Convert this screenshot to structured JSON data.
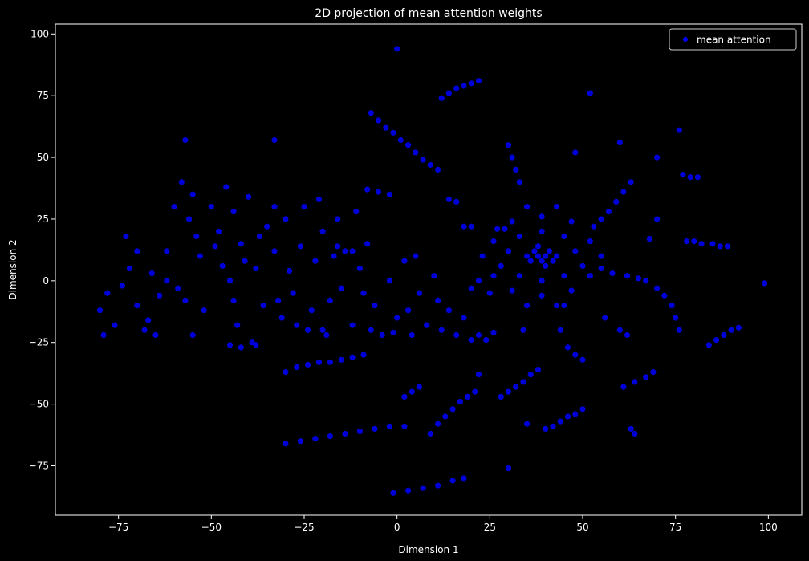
{
  "chart_data": {
    "type": "scatter",
    "title": "2D projection of mean attention weights",
    "xlabel": "Dimension 1",
    "ylabel": "Dimension 2",
    "xlim": [
      -92,
      109
    ],
    "ylim": [
      -95,
      104
    ],
    "xticks": [
      -75,
      -50,
      -25,
      0,
      25,
      50,
      75,
      100
    ],
    "yticks": [
      -75,
      -50,
      -25,
      0,
      25,
      50,
      75,
      100
    ],
    "xtick_labels": [
      "−75",
      "−50",
      "−25",
      "0",
      "25",
      "50",
      "75",
      "100"
    ],
    "ytick_labels": [
      "−75",
      "−50",
      "−25",
      "0",
      "25",
      "50",
      "75",
      "100"
    ],
    "grid": false,
    "legend_position": "top-right",
    "colors": {
      "background": "#000000",
      "points": "#0000ff",
      "text": "#ffffff"
    },
    "series": [
      {
        "name": "mean attention",
        "color": "#0000ff",
        "points": [
          [
            -80,
            -12
          ],
          [
            -78,
            -5
          ],
          [
            -76,
            -18
          ],
          [
            -74,
            -2
          ],
          [
            -72,
            5
          ],
          [
            -70,
            -10
          ],
          [
            -68,
            -20
          ],
          [
            -66,
            3
          ],
          [
            -64,
            -6
          ],
          [
            -62,
            12
          ],
          [
            -60,
            30
          ],
          [
            -58,
            40
          ],
          [
            -56,
            25
          ],
          [
            -55,
            35
          ],
          [
            -53,
            10
          ],
          [
            -50,
            30
          ],
          [
            -48,
            20
          ],
          [
            -46,
            38
          ],
          [
            -45,
            0
          ],
          [
            -44,
            28
          ],
          [
            -42,
            15
          ],
          [
            -40,
            34
          ],
          [
            -38,
            5
          ],
          [
            -36,
            -10
          ],
          [
            -35,
            22
          ],
          [
            -33,
            12
          ],
          [
            -31,
            -15
          ],
          [
            -30,
            25
          ],
          [
            -28,
            -5
          ],
          [
            -26,
            14
          ],
          [
            -25,
            30
          ],
          [
            -24,
            -20
          ],
          [
            -22,
            8
          ],
          [
            -20,
            20
          ],
          [
            -18,
            -8
          ],
          [
            -16,
            25
          ],
          [
            -14,
            12
          ],
          [
            -12,
            -18
          ],
          [
            -10,
            5
          ],
          [
            -8,
            15
          ],
          [
            -6,
            -10
          ],
          [
            -4,
            -22
          ],
          [
            -2,
            0
          ],
          [
            0,
            -15
          ],
          [
            2,
            8
          ],
          [
            4,
            -22
          ],
          [
            6,
            -5
          ],
          [
            8,
            -18
          ],
          [
            10,
            2
          ],
          [
            12,
            -20
          ],
          [
            14,
            -12
          ],
          [
            16,
            -22
          ],
          [
            18,
            -15
          ],
          [
            20,
            -24
          ],
          [
            22,
            -22
          ],
          [
            24,
            -24
          ],
          [
            26,
            -21
          ],
          [
            -73,
            18
          ],
          [
            -67,
            -16
          ],
          [
            -59,
            -3
          ],
          [
            -52,
            -12
          ],
          [
            -47,
            6
          ],
          [
            -43,
            -18
          ],
          [
            -39,
            -25
          ],
          [
            -33,
            30
          ],
          [
            -27,
            -18
          ],
          [
            -21,
            33
          ],
          [
            -15,
            -3
          ],
          [
            -11,
            28
          ],
          [
            -62,
            0
          ],
          [
            -57,
            -8
          ],
          [
            -49,
            14
          ],
          [
            -44,
            -8
          ],
          [
            -37,
            18
          ],
          [
            -29,
            4
          ],
          [
            -23,
            -12
          ],
          [
            -17,
            10
          ],
          [
            -9,
            -5
          ],
          [
            -1,
            -21
          ],
          [
            5,
            10
          ],
          [
            -65,
            -22
          ],
          [
            -70,
            12
          ],
          [
            -79,
            -22
          ],
          [
            -54,
            18
          ],
          [
            -41,
            8
          ],
          [
            -32,
            -8
          ],
          [
            -19,
            -22
          ],
          [
            -7,
            -20
          ],
          [
            3,
            -12
          ],
          [
            11,
            -8
          ],
          [
            -5,
            65
          ],
          [
            -3,
            62
          ],
          [
            -1,
            60
          ],
          [
            1,
            57
          ],
          [
            3,
            55
          ],
          [
            5,
            52
          ],
          [
            7,
            49
          ],
          [
            9,
            47
          ],
          [
            11,
            45
          ],
          [
            -7,
            68
          ],
          [
            12,
            74
          ],
          [
            14,
            76
          ],
          [
            16,
            78
          ],
          [
            18,
            79
          ],
          [
            20,
            80
          ],
          [
            22,
            81
          ],
          [
            -30,
            -37
          ],
          [
            -27,
            -35
          ],
          [
            -24,
            -34
          ],
          [
            -21,
            -33
          ],
          [
            -18,
            -33
          ],
          [
            -15,
            -32
          ],
          [
            -12,
            -31
          ],
          [
            -9,
            -30
          ],
          [
            -30,
            -66
          ],
          [
            -26,
            -65
          ],
          [
            -22,
            -64
          ],
          [
            -18,
            -63
          ],
          [
            -14,
            -62
          ],
          [
            -10,
            -61
          ],
          [
            -6,
            -60
          ],
          [
            -2,
            -59
          ],
          [
            2,
            -59
          ],
          [
            -1,
            -86
          ],
          [
            3,
            -85
          ],
          [
            7,
            -84
          ],
          [
            11,
            -83
          ],
          [
            15,
            -81
          ],
          [
            18,
            -80
          ],
          [
            9,
            -62
          ],
          [
            11,
            -58
          ],
          [
            13,
            -55
          ],
          [
            15,
            -52
          ],
          [
            17,
            -49
          ],
          [
            19,
            -47
          ],
          [
            21,
            -45
          ],
          [
            28,
            -47
          ],
          [
            30,
            -45
          ],
          [
            32,
            -43
          ],
          [
            34,
            -41
          ],
          [
            36,
            -38
          ],
          [
            38,
            -36
          ],
          [
            40,
            -60
          ],
          [
            42,
            -59
          ],
          [
            44,
            -57
          ],
          [
            46,
            -55
          ],
          [
            48,
            -54
          ],
          [
            50,
            -52
          ],
          [
            30,
            55
          ],
          [
            31,
            50
          ],
          [
            32,
            45
          ],
          [
            33,
            40
          ],
          [
            30,
            -76
          ],
          [
            64,
            -62
          ],
          [
            63,
            -60
          ],
          [
            61,
            -43
          ],
          [
            64,
            -41
          ],
          [
            67,
            -39
          ],
          [
            69,
            -37
          ],
          [
            84,
            -26
          ],
          [
            86,
            -24
          ],
          [
            88,
            -22
          ],
          [
            90,
            -20
          ],
          [
            92,
            -19
          ],
          [
            99,
            -1
          ],
          [
            55,
            5
          ],
          [
            58,
            3
          ],
          [
            62,
            2
          ],
          [
            65,
            1
          ],
          [
            67,
            0
          ],
          [
            70,
            -3
          ],
          [
            72,
            -6
          ],
          [
            74,
            -10
          ],
          [
            75,
            -15
          ],
          [
            76,
            -20
          ],
          [
            53,
            22
          ],
          [
            55,
            25
          ],
          [
            57,
            28
          ],
          [
            59,
            32
          ],
          [
            61,
            36
          ],
          [
            63,
            40
          ],
          [
            78,
            16
          ],
          [
            80,
            16
          ],
          [
            82,
            15
          ],
          [
            85,
            15
          ],
          [
            87,
            14
          ],
          [
            89,
            14
          ],
          [
            77,
            43
          ],
          [
            79,
            42
          ],
          [
            81,
            42
          ],
          [
            76,
            61
          ],
          [
            70,
            25
          ],
          [
            68,
            17
          ],
          [
            0,
            94
          ],
          [
            52,
            76
          ],
          [
            48,
            52
          ],
          [
            60,
            56
          ],
          [
            70,
            50
          ],
          [
            38,
            10
          ],
          [
            40,
            10
          ],
          [
            39,
            8
          ],
          [
            41,
            12
          ],
          [
            37,
            12
          ],
          [
            36,
            8
          ],
          [
            42,
            8
          ],
          [
            35,
            10
          ],
          [
            43,
            10
          ],
          [
            38,
            14
          ],
          [
            40,
            6
          ],
          [
            30,
            12
          ],
          [
            48,
            12
          ],
          [
            39,
            20
          ],
          [
            39,
            0
          ],
          [
            28,
            6
          ],
          [
            50,
            6
          ],
          [
            33,
            18
          ],
          [
            45,
            18
          ],
          [
            33,
            2
          ],
          [
            45,
            2
          ],
          [
            26,
            16
          ],
          [
            52,
            16
          ],
          [
            39,
            26
          ],
          [
            39,
            -6
          ],
          [
            26,
            2
          ],
          [
            52,
            2
          ],
          [
            31,
            24
          ],
          [
            47,
            24
          ],
          [
            31,
            -4
          ],
          [
            47,
            -4
          ],
          [
            23,
            10
          ],
          [
            55,
            10
          ],
          [
            35,
            -10
          ],
          [
            43,
            -10
          ],
          [
            35,
            30
          ],
          [
            43,
            30
          ],
          [
            -57,
            57
          ],
          [
            -33,
            57
          ],
          [
            -20,
            -20
          ],
          [
            -38,
            -26
          ],
          [
            -42,
            -27
          ],
          [
            -55,
            -22
          ],
          [
            -45,
            -26
          ],
          [
            -8,
            37
          ],
          [
            -5,
            36
          ],
          [
            -2,
            35
          ],
          [
            -16,
            14
          ],
          [
            -12,
            12
          ],
          [
            20,
            -3
          ],
          [
            22,
            0
          ],
          [
            25,
            -5
          ],
          [
            6,
            -43
          ],
          [
            4,
            -45
          ],
          [
            2,
            -47
          ],
          [
            27,
            21
          ],
          [
            29,
            21
          ],
          [
            18,
            22
          ],
          [
            20,
            22
          ],
          [
            14,
            33
          ],
          [
            16,
            32
          ],
          [
            60,
            -20
          ],
          [
            62,
            -22
          ],
          [
            48,
            -30
          ],
          [
            50,
            -32
          ],
          [
            46,
            -27
          ],
          [
            35,
            -58
          ],
          [
            45,
            -10
          ],
          [
            34,
            -20
          ],
          [
            44,
            -20
          ],
          [
            56,
            -15
          ],
          [
            22,
            -38
          ]
        ]
      }
    ]
  }
}
